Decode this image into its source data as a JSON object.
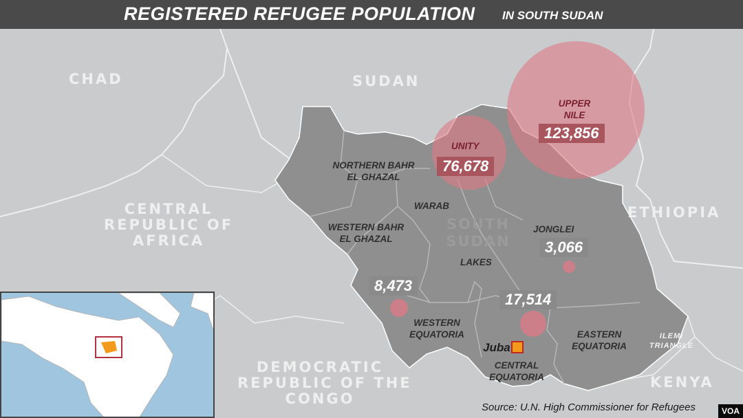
{
  "title": {
    "main": "REGISTERED REFUGEE POPULATION",
    "sub": "IN SOUTH SUDAN"
  },
  "colors": {
    "background": "#c9cbcc",
    "south_sudan_fill": "#8f8f8f",
    "refugee_circle": "#e07a85",
    "value_box": "#8a8a8a",
    "juba_marker": "#f39a1a",
    "title_bar": "#4a4a4a"
  },
  "countries": {
    "chad": "CHAD",
    "sudan": "SUDAN",
    "ethiopia": "ETHIOPIA",
    "car": [
      "CENTRAL",
      "REPUBLIC OF",
      "AFRICA"
    ],
    "drc": [
      "DEMOCRATIC",
      "REPUBLIC OF THE",
      "CONGO"
    ],
    "kenya": "KENYA",
    "ilemi": [
      "ILEMI",
      "TRIANGLE"
    ]
  },
  "center_label": [
    "SOUTH",
    "SUDAN"
  ],
  "states": {
    "northern_bahr": [
      "NORTHERN BAHR",
      "EL GHAZAL"
    ],
    "western_bahr": [
      "WESTERN BAHR",
      "EL GHAZAL"
    ],
    "warab": "WARAB",
    "lakes": "LAKES",
    "jonglei": "JONGLEI",
    "western_equatoria": [
      "WESTERN",
      "EQUATORIA"
    ],
    "central_equatoria": [
      "CENTRAL",
      "EQUATORIA"
    ],
    "eastern_equatoria": [
      "EASTERN",
      "EQUATORIA"
    ]
  },
  "refugees": {
    "upper_nile": {
      "name": [
        "UPPER",
        "NILE"
      ],
      "value": "123,856"
    },
    "unity": {
      "name": "UNITY",
      "value": "76,678"
    },
    "jonglei": {
      "value": "3,066"
    },
    "western_equatoria": {
      "value": "8,473"
    },
    "central_equatoria": {
      "value": "17,514"
    }
  },
  "city": {
    "name": "Juba"
  },
  "source": "Source: U.N. High Commissioner for Refugees",
  "brand": "VOA"
}
